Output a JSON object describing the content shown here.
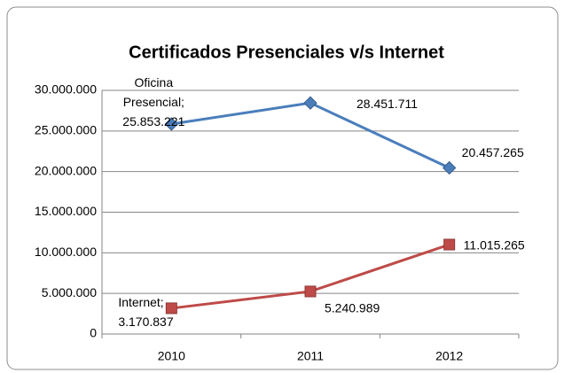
{
  "chart_data": {
    "type": "line",
    "title": "Certificados Presenciales v/s Internet",
    "categories": [
      "2010",
      "2011",
      "2012"
    ],
    "series": [
      {
        "name": "Oficina Presencial",
        "color": "#4a7ebb",
        "marker": "diamond",
        "values": [
          25853221,
          28451711,
          20457265
        ],
        "value_labels": [
          "Oficina Presencial; 25.853.221",
          "28.451.711",
          "20.457.265"
        ]
      },
      {
        "name": "Internet",
        "color": "#be4b48",
        "marker": "square",
        "values": [
          3170837,
          5240989,
          11015265
        ],
        "value_labels": [
          "Internet; 3.170.837",
          "5.240.989",
          "11.015.265"
        ]
      }
    ],
    "ylim": [
      0,
      30000000
    ],
    "yticks": [
      0,
      {
        "value": 5000000,
        "label": "5.000.000"
      },
      {
        "value": 10000000,
        "label": "10.000.000"
      },
      {
        "value": 15000000,
        "label": "15.000.000"
      },
      {
        "value": 20000000,
        "label": "20.000.000"
      },
      {
        "value": 25000000,
        "label": "25.000.000"
      },
      {
        "value": 30000000,
        "label": "30.000.000"
      }
    ],
    "grid": true
  }
}
